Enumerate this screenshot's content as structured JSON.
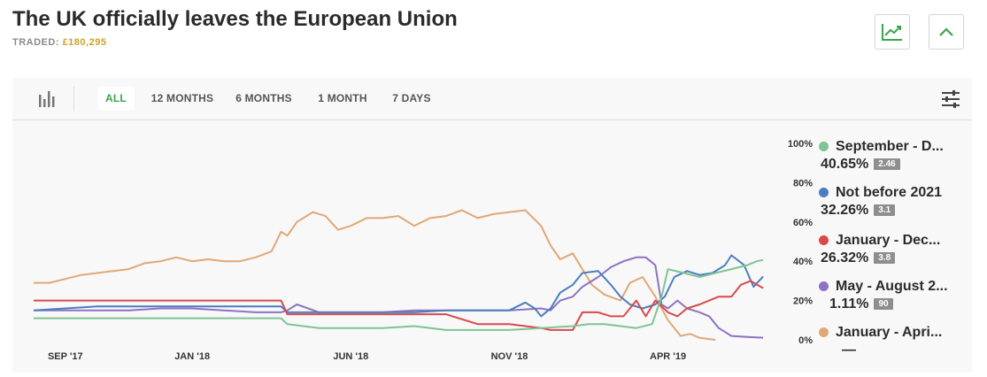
{
  "header": {
    "title": "The UK officially leaves the European Union",
    "traded_label": "TRADED:",
    "traded_value": "£180,295"
  },
  "toolbar": {
    "tabs": [
      "ALL",
      "12 MONTHS",
      "6 MONTHS",
      "1 MONTH",
      "7 DAYS"
    ],
    "active_tab": "ALL"
  },
  "icons": {
    "chart_toggle": "line-chart-icon",
    "collapse": "chevron-up-icon",
    "bar_chart": "bar-chart-icon",
    "filter": "sliders-icon"
  },
  "legend": [
    {
      "name": "September - D...",
      "percent": "40.65%",
      "odds": "2.46",
      "color": "#7fc492"
    },
    {
      "name": "Not before 2021",
      "percent": "32.26%",
      "odds": "3.1",
      "color": "#4a7ec0"
    },
    {
      "name": "January - Dec...",
      "percent": "26.32%",
      "odds": "3.8",
      "color": "#d94a4a"
    },
    {
      "name": "May - August 2...",
      "percent": "1.11%",
      "odds": "90",
      "color": "#8e72c2"
    },
    {
      "name": "January - Apri...",
      "percent": "",
      "odds": "—",
      "color": "#e0a877"
    }
  ],
  "chart_data": {
    "type": "line",
    "x_tick_labels": [
      "SEP '17",
      "JAN '18",
      "JUN '18",
      "NOV '18",
      "APR '19"
    ],
    "x_tick_positions": [
      1.0,
      5.0,
      10.0,
      15.0,
      20.0
    ],
    "x_range": [
      0,
      23.5
    ],
    "y_tick_labels": [
      "100%",
      "80%",
      "60%",
      "40%",
      "20%",
      "0%"
    ],
    "ylim": [
      0,
      100
    ],
    "grid": false,
    "legend_position": "right",
    "series": [
      {
        "name": "January - Apri...",
        "color": "#e0a877",
        "points": [
          [
            0,
            29
          ],
          [
            0.5,
            29
          ],
          [
            1.0,
            31
          ],
          [
            1.5,
            33
          ],
          [
            2.0,
            34
          ],
          [
            2.5,
            35
          ],
          [
            3.0,
            36
          ],
          [
            3.5,
            39
          ],
          [
            4.0,
            40
          ],
          [
            4.5,
            42
          ],
          [
            5.0,
            40
          ],
          [
            5.5,
            41
          ],
          [
            6.0,
            40
          ],
          [
            6.5,
            40
          ],
          [
            7.0,
            42
          ],
          [
            7.5,
            45
          ],
          [
            7.8,
            55
          ],
          [
            8.0,
            53
          ],
          [
            8.3,
            60
          ],
          [
            8.5,
            62
          ],
          [
            8.8,
            65
          ],
          [
            9.2,
            63
          ],
          [
            9.6,
            56
          ],
          [
            10.0,
            58
          ],
          [
            10.5,
            62
          ],
          [
            11.0,
            62
          ],
          [
            11.5,
            63
          ],
          [
            12.0,
            58
          ],
          [
            12.5,
            62
          ],
          [
            13.0,
            63
          ],
          [
            13.5,
            66
          ],
          [
            14.0,
            62
          ],
          [
            14.5,
            64
          ],
          [
            15.0,
            65
          ],
          [
            15.5,
            66
          ],
          [
            16.0,
            58
          ],
          [
            16.3,
            48
          ],
          [
            16.6,
            41
          ],
          [
            17.0,
            44
          ],
          [
            17.3,
            36
          ],
          [
            17.6,
            28
          ],
          [
            18.0,
            23
          ],
          [
            18.5,
            20
          ],
          [
            18.8,
            29
          ],
          [
            19.2,
            32
          ],
          [
            19.6,
            22
          ],
          [
            20.0,
            10
          ],
          [
            20.4,
            2
          ],
          [
            20.7,
            3
          ],
          [
            21.0,
            1
          ],
          [
            21.5,
            0
          ]
        ]
      },
      {
        "name": "May - August 2...",
        "color": "#8e72c2",
        "points": [
          [
            0,
            15
          ],
          [
            3,
            15
          ],
          [
            4,
            16
          ],
          [
            5,
            16
          ],
          [
            6,
            15
          ],
          [
            7,
            14
          ],
          [
            7.8,
            14
          ],
          [
            8.0,
            15
          ],
          [
            8.3,
            18
          ],
          [
            9.0,
            14
          ],
          [
            10.0,
            14
          ],
          [
            11.0,
            14
          ],
          [
            12.0,
            15
          ],
          [
            13.0,
            15
          ],
          [
            14.0,
            15
          ],
          [
            15.0,
            15
          ],
          [
            16.0,
            16
          ],
          [
            16.3,
            15
          ],
          [
            16.6,
            20
          ],
          [
            17.0,
            22
          ],
          [
            17.3,
            27
          ],
          [
            17.8,
            32
          ],
          [
            18.2,
            37
          ],
          [
            18.6,
            40
          ],
          [
            19.0,
            42
          ],
          [
            19.3,
            42
          ],
          [
            19.6,
            38
          ],
          [
            19.8,
            18
          ],
          [
            20.0,
            16
          ],
          [
            20.3,
            20
          ],
          [
            20.6,
            16
          ],
          [
            21.0,
            14
          ],
          [
            21.3,
            12
          ],
          [
            21.6,
            6
          ],
          [
            22.0,
            2
          ],
          [
            22.5,
            1.5
          ],
          [
            23.0,
            1.1
          ]
        ]
      },
      {
        "name": "Not before 2021",
        "color": "#4a7ec0",
        "points": [
          [
            0,
            15
          ],
          [
            1,
            16
          ],
          [
            2,
            17
          ],
          [
            3,
            17
          ],
          [
            4,
            17
          ],
          [
            5,
            17
          ],
          [
            6,
            17
          ],
          [
            7,
            17
          ],
          [
            7.8,
            17
          ],
          [
            8.0,
            14
          ],
          [
            8.3,
            14
          ],
          [
            9.0,
            14
          ],
          [
            10.0,
            14
          ],
          [
            11.0,
            14
          ],
          [
            12.0,
            14
          ],
          [
            13.0,
            15
          ],
          [
            14.0,
            15
          ],
          [
            15.0,
            15
          ],
          [
            15.5,
            19
          ],
          [
            15.8,
            16
          ],
          [
            16.0,
            12
          ],
          [
            16.3,
            16
          ],
          [
            16.6,
            24
          ],
          [
            17.0,
            28
          ],
          [
            17.3,
            34
          ],
          [
            17.8,
            35
          ],
          [
            18.2,
            28
          ],
          [
            18.5,
            22
          ],
          [
            18.8,
            18
          ],
          [
            19.2,
            16
          ],
          [
            19.6,
            18
          ],
          [
            19.9,
            22
          ],
          [
            20.2,
            32
          ],
          [
            20.6,
            35
          ],
          [
            21.0,
            33
          ],
          [
            21.4,
            34
          ],
          [
            21.8,
            38
          ],
          [
            22.0,
            43
          ],
          [
            22.4,
            38
          ],
          [
            22.7,
            27
          ],
          [
            23.0,
            32.26
          ]
        ]
      },
      {
        "name": "January - Dec...",
        "color": "#d94a4a",
        "points": [
          [
            0,
            20
          ],
          [
            3,
            20
          ],
          [
            4,
            20
          ],
          [
            5,
            20
          ],
          [
            6,
            20
          ],
          [
            7,
            20
          ],
          [
            7.8,
            20
          ],
          [
            8.0,
            13
          ],
          [
            9.0,
            13
          ],
          [
            10.0,
            13
          ],
          [
            11.0,
            13
          ],
          [
            12.0,
            13
          ],
          [
            13.0,
            13
          ],
          [
            14.0,
            8
          ],
          [
            15.0,
            8
          ],
          [
            16.0,
            6
          ],
          [
            16.3,
            5
          ],
          [
            17.0,
            5
          ],
          [
            17.3,
            14
          ],
          [
            17.8,
            14
          ],
          [
            18.2,
            12
          ],
          [
            18.6,
            12
          ],
          [
            19.0,
            20
          ],
          [
            19.3,
            12
          ],
          [
            19.6,
            20
          ],
          [
            20.0,
            14
          ],
          [
            20.3,
            12
          ],
          [
            20.6,
            16
          ],
          [
            21.0,
            18
          ],
          [
            21.3,
            20
          ],
          [
            21.6,
            22
          ],
          [
            22.0,
            22
          ],
          [
            22.3,
            28
          ],
          [
            22.6,
            30
          ],
          [
            23.0,
            26.32
          ]
        ]
      },
      {
        "name": "September - D...",
        "color": "#7fc492",
        "points": [
          [
            0,
            11
          ],
          [
            3,
            11
          ],
          [
            4,
            11
          ],
          [
            5,
            11
          ],
          [
            6,
            11
          ],
          [
            7,
            11
          ],
          [
            7.8,
            11
          ],
          [
            8.0,
            8
          ],
          [
            9.0,
            6
          ],
          [
            10.0,
            6
          ],
          [
            11.0,
            6
          ],
          [
            12.0,
            7
          ],
          [
            13.0,
            5
          ],
          [
            14.0,
            5
          ],
          [
            15.0,
            5
          ],
          [
            16.0,
            6
          ],
          [
            17.0,
            7
          ],
          [
            17.5,
            8
          ],
          [
            18.0,
            8
          ],
          [
            18.5,
            7
          ],
          [
            19.0,
            6
          ],
          [
            19.5,
            8
          ],
          [
            19.8,
            22
          ],
          [
            20.0,
            36
          ],
          [
            20.5,
            34
          ],
          [
            21.0,
            32
          ],
          [
            21.5,
            34
          ],
          [
            22.0,
            36
          ],
          [
            22.5,
            38
          ],
          [
            22.8,
            40
          ],
          [
            23.0,
            40.65
          ]
        ]
      }
    ]
  }
}
